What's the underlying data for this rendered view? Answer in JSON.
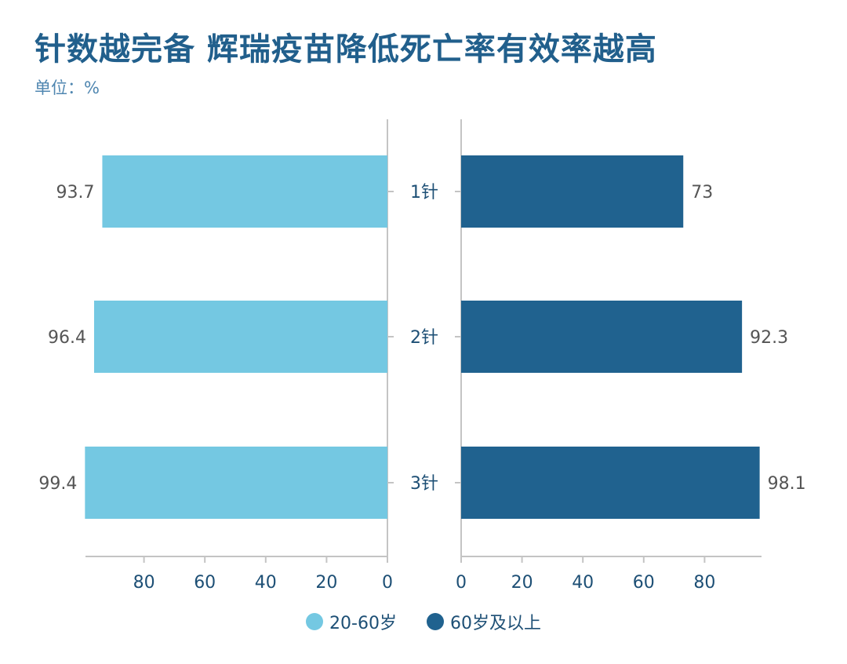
{
  "title": "针数越完备 辉瑞疫苗降低死亡率有效率越高",
  "subtitle": "单位：%",
  "chart_data": {
    "type": "bar",
    "orientation": "horizontal-butterfly",
    "categories": [
      "1针",
      "2针",
      "3针"
    ],
    "series": [
      {
        "name": "20-60岁",
        "values": [
          93.7,
          96.4,
          99.4
        ],
        "color": "#74c8e2"
      },
      {
        "name": "60岁及以上",
        "values": [
          73,
          92.3,
          98.1
        ],
        "color": "#20628f"
      }
    ],
    "x_ticks_left": [
      "80",
      "60",
      "40",
      "20",
      "0"
    ],
    "x_ticks_right": [
      "0",
      "20",
      "40",
      "60",
      "80"
    ],
    "xlim": [
      0,
      100
    ],
    "grid": false,
    "legend_position": "bottom"
  }
}
